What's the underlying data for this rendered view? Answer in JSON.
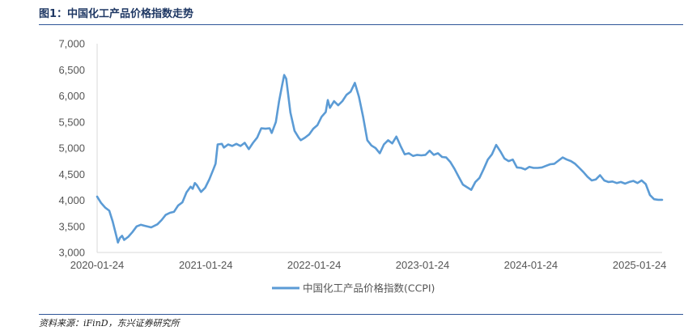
{
  "header": {
    "title": "图1：中国化工产品价格指数走势"
  },
  "footer": {
    "source": "资料来源：iFinD，东兴证券研究所"
  },
  "colors": {
    "line": "#5b9bd5",
    "rule": "#2e5597",
    "title": "#1f3864",
    "axis": "#d9d9d9"
  },
  "chart_data": {
    "type": "line",
    "title": "",
    "xlabel": "",
    "ylabel": "",
    "ylim": [
      3000,
      7000
    ],
    "yticks": [
      3000,
      3500,
      4000,
      4500,
      5000,
      5500,
      6000,
      6500,
      7000
    ],
    "ytick_labels": [
      "3,000",
      "3,500",
      "4,000",
      "4,500",
      "5,000",
      "5,500",
      "6,000",
      "6,500",
      "7,000"
    ],
    "xlim": [
      "2020-01-24",
      "2025-04-10"
    ],
    "xticks": [
      "2020-01-24",
      "2021-01-24",
      "2022-01-24",
      "2023-01-24",
      "2024-01-24",
      "2025-01-24"
    ],
    "grid": false,
    "legend_position": "bottom",
    "series": [
      {
        "name": "中国化工产品价格指数(CCPI)",
        "color": "#5b9bd5",
        "points": [
          [
            "2020-01-24",
            4070
          ],
          [
            "2020-02-06",
            3950
          ],
          [
            "2020-02-20",
            3860
          ],
          [
            "2020-03-05",
            3800
          ],
          [
            "2020-03-16",
            3600
          ],
          [
            "2020-03-28",
            3330
          ],
          [
            "2020-04-03",
            3190
          ],
          [
            "2020-04-10",
            3280
          ],
          [
            "2020-04-17",
            3320
          ],
          [
            "2020-04-24",
            3240
          ],
          [
            "2020-05-08",
            3300
          ],
          [
            "2020-05-22",
            3390
          ],
          [
            "2020-06-05",
            3500
          ],
          [
            "2020-06-19",
            3530
          ],
          [
            "2020-07-03",
            3510
          ],
          [
            "2020-07-24",
            3480
          ],
          [
            "2020-08-14",
            3540
          ],
          [
            "2020-08-28",
            3620
          ],
          [
            "2020-09-11",
            3720
          ],
          [
            "2020-09-25",
            3760
          ],
          [
            "2020-10-09",
            3780
          ],
          [
            "2020-10-23",
            3900
          ],
          [
            "2020-11-06",
            3960
          ],
          [
            "2020-11-20",
            4150
          ],
          [
            "2020-12-04",
            4260
          ],
          [
            "2020-12-11",
            4220
          ],
          [
            "2020-12-18",
            4330
          ],
          [
            "2020-12-25",
            4290
          ],
          [
            "2021-01-08",
            4160
          ],
          [
            "2021-01-22",
            4240
          ],
          [
            "2021-02-05",
            4400
          ],
          [
            "2021-02-19",
            4600
          ],
          [
            "2021-02-26",
            4700
          ],
          [
            "2021-03-05",
            5070
          ],
          [
            "2021-03-19",
            5080
          ],
          [
            "2021-03-26",
            5010
          ],
          [
            "2021-04-09",
            5070
          ],
          [
            "2021-04-23",
            5040
          ],
          [
            "2021-05-07",
            5080
          ],
          [
            "2021-05-21",
            5040
          ],
          [
            "2021-06-04",
            5100
          ],
          [
            "2021-06-18",
            4980
          ],
          [
            "2021-07-02",
            5100
          ],
          [
            "2021-07-16",
            5200
          ],
          [
            "2021-07-30",
            5380
          ],
          [
            "2021-08-13",
            5370
          ],
          [
            "2021-08-27",
            5380
          ],
          [
            "2021-09-03",
            5290
          ],
          [
            "2021-09-17",
            5500
          ],
          [
            "2021-09-28",
            5900
          ],
          [
            "2021-10-08",
            6200
          ],
          [
            "2021-10-15",
            6400
          ],
          [
            "2021-10-22",
            6330
          ],
          [
            "2021-11-05",
            5680
          ],
          [
            "2021-11-19",
            5330
          ],
          [
            "2021-12-03",
            5200
          ],
          [
            "2021-12-10",
            5150
          ],
          [
            "2021-12-24",
            5200
          ],
          [
            "2022-01-07",
            5260
          ],
          [
            "2022-01-21",
            5370
          ],
          [
            "2022-02-04",
            5440
          ],
          [
            "2022-02-18",
            5600
          ],
          [
            "2022-03-04",
            5690
          ],
          [
            "2022-03-11",
            5920
          ],
          [
            "2022-03-18",
            5770
          ],
          [
            "2022-04-01",
            5900
          ],
          [
            "2022-04-15",
            5820
          ],
          [
            "2022-04-29",
            5900
          ],
          [
            "2022-05-13",
            6020
          ],
          [
            "2022-05-27",
            6080
          ],
          [
            "2022-06-10",
            6250
          ],
          [
            "2022-06-24",
            5980
          ],
          [
            "2022-07-08",
            5600
          ],
          [
            "2022-07-22",
            5150
          ],
          [
            "2022-08-05",
            5050
          ],
          [
            "2022-08-19",
            5000
          ],
          [
            "2022-09-02",
            4900
          ],
          [
            "2022-09-16",
            5070
          ],
          [
            "2022-09-30",
            5150
          ],
          [
            "2022-10-14",
            5090
          ],
          [
            "2022-10-28",
            5220
          ],
          [
            "2022-11-11",
            5040
          ],
          [
            "2022-11-25",
            4880
          ],
          [
            "2022-12-09",
            4900
          ],
          [
            "2022-12-23",
            4850
          ],
          [
            "2023-01-06",
            4870
          ],
          [
            "2023-01-20",
            4860
          ],
          [
            "2023-02-03",
            4870
          ],
          [
            "2023-02-17",
            4950
          ],
          [
            "2023-03-03",
            4870
          ],
          [
            "2023-03-17",
            4900
          ],
          [
            "2023-03-31",
            4830
          ],
          [
            "2023-04-14",
            4820
          ],
          [
            "2023-04-28",
            4730
          ],
          [
            "2023-05-12",
            4600
          ],
          [
            "2023-05-26",
            4450
          ],
          [
            "2023-06-09",
            4300
          ],
          [
            "2023-06-23",
            4250
          ],
          [
            "2023-07-07",
            4200
          ],
          [
            "2023-07-21",
            4350
          ],
          [
            "2023-08-04",
            4430
          ],
          [
            "2023-08-18",
            4600
          ],
          [
            "2023-09-01",
            4780
          ],
          [
            "2023-09-15",
            4880
          ],
          [
            "2023-09-29",
            5060
          ],
          [
            "2023-10-13",
            4940
          ],
          [
            "2023-10-27",
            4800
          ],
          [
            "2023-11-10",
            4750
          ],
          [
            "2023-11-24",
            4780
          ],
          [
            "2023-12-08",
            4630
          ],
          [
            "2023-12-22",
            4620
          ],
          [
            "2024-01-05",
            4590
          ],
          [
            "2024-01-19",
            4640
          ],
          [
            "2024-02-02",
            4620
          ],
          [
            "2024-02-16",
            4620
          ],
          [
            "2024-03-01",
            4630
          ],
          [
            "2024-03-15",
            4660
          ],
          [
            "2024-03-29",
            4690
          ],
          [
            "2024-04-12",
            4700
          ],
          [
            "2024-04-26",
            4760
          ],
          [
            "2024-05-10",
            4820
          ],
          [
            "2024-05-24",
            4780
          ],
          [
            "2024-06-07",
            4750
          ],
          [
            "2024-06-21",
            4700
          ],
          [
            "2024-07-05",
            4620
          ],
          [
            "2024-07-19",
            4540
          ],
          [
            "2024-08-02",
            4450
          ],
          [
            "2024-08-16",
            4380
          ],
          [
            "2024-08-30",
            4400
          ],
          [
            "2024-09-13",
            4480
          ],
          [
            "2024-09-27",
            4380
          ],
          [
            "2024-10-11",
            4350
          ],
          [
            "2024-10-25",
            4360
          ],
          [
            "2024-11-08",
            4330
          ],
          [
            "2024-11-22",
            4350
          ],
          [
            "2024-12-06",
            4320
          ],
          [
            "2024-12-20",
            4350
          ],
          [
            "2025-01-03",
            4370
          ],
          [
            "2025-01-17",
            4330
          ],
          [
            "2025-01-31",
            4380
          ],
          [
            "2025-02-14",
            4310
          ],
          [
            "2025-02-28",
            4100
          ],
          [
            "2025-03-14",
            4020
          ],
          [
            "2025-03-28",
            4010
          ],
          [
            "2025-04-10",
            4010
          ]
        ]
      }
    ]
  }
}
